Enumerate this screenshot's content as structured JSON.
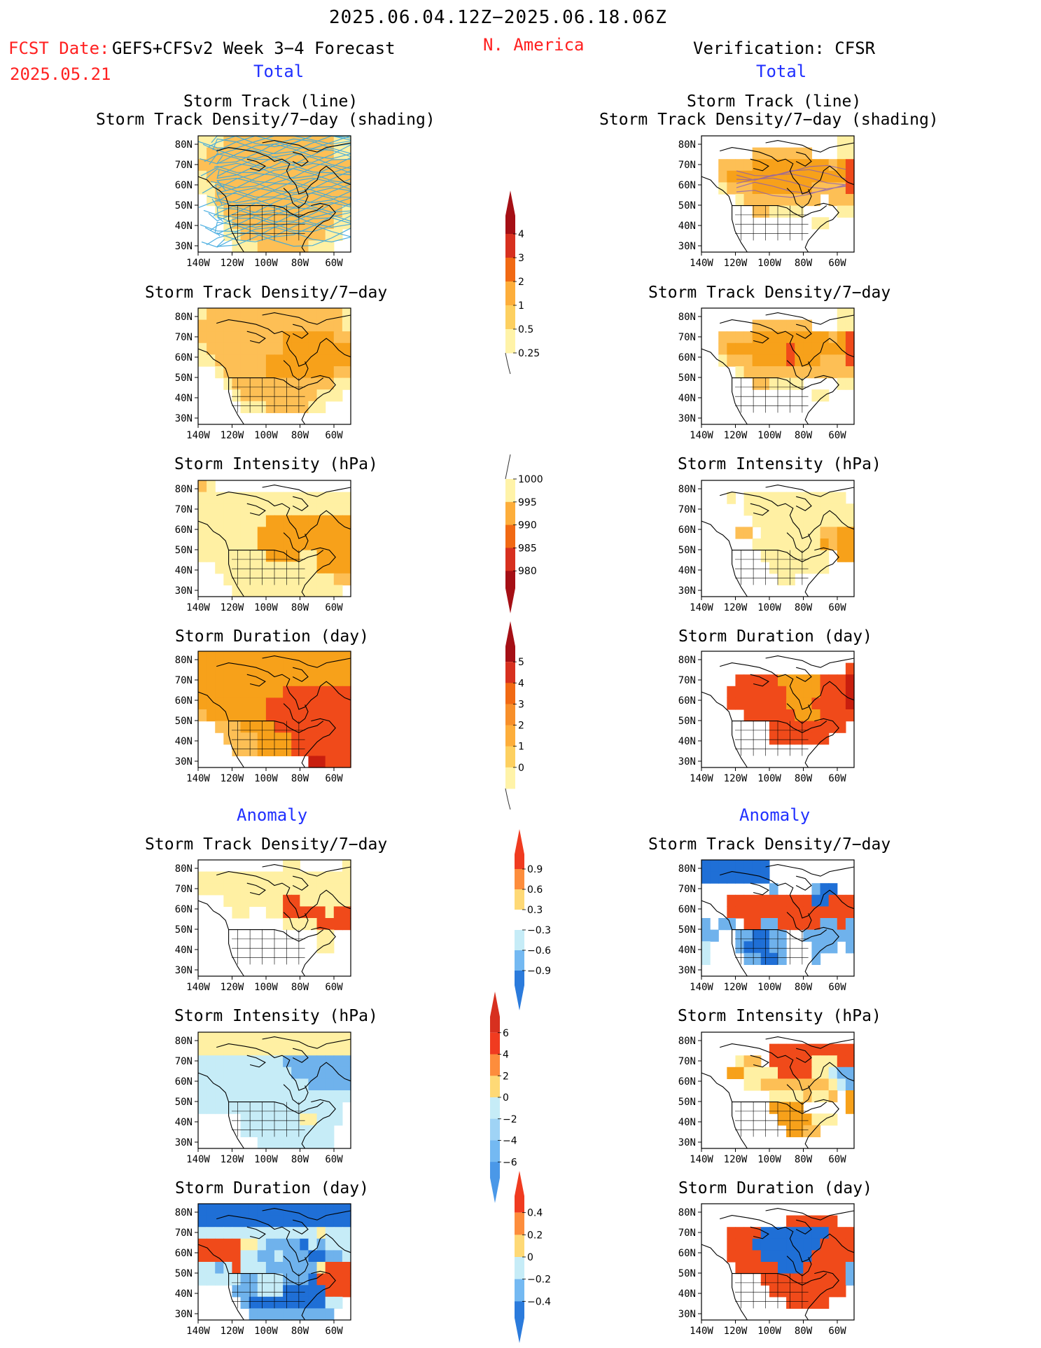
{
  "header": {
    "date_range": "2025.06.04.12Z−2025.06.18.06Z",
    "fcst_label": "FCST Date:",
    "fcst_date": "2025.05.21",
    "model": "GEFS+CFSv2 Week 3−4 Forecast",
    "region": "N. America",
    "verification": "Verification: CFSR",
    "total_left": "Total",
    "total_right": "Total",
    "anomaly_left": "Anomaly",
    "anomaly_right": "Anomaly"
  },
  "panel_titles": {
    "track_line": "Storm Track (line)",
    "track_shading": "Storm Track Density/7−day (shading)",
    "density": "Storm Track Density/7−day",
    "intensity": "Storm Intensity (hPa)",
    "duration": "Storm Duration (day)"
  },
  "axes": {
    "lat_ticks": [
      "80N",
      "70N",
      "60N",
      "50N",
      "40N",
      "30N"
    ],
    "lon_ticks": [
      "140W",
      "120W",
      "100W",
      "80W",
      "60W"
    ]
  },
  "colorbars": {
    "density_total": {
      "labels": [
        "4",
        "3",
        "2",
        "1",
        "0.5",
        "0.25"
      ],
      "colors": [
        "#a50f15",
        "#d7301f",
        "#f16913",
        "#fdae3b",
        "#fdd060",
        "#fff3a8"
      ]
    },
    "intensity_total": {
      "labels": [
        "1000",
        "995",
        "990",
        "985",
        "980"
      ],
      "colors": [
        "#fff3a8",
        "#fdae3b",
        "#f16913",
        "#d7301f",
        "#a50f15"
      ]
    },
    "duration_total": {
      "labels": [
        "5",
        "4",
        "3",
        "2",
        "1",
        "0"
      ],
      "colors": [
        "#a50f15",
        "#d7301f",
        "#f16913",
        "#f78f2a",
        "#fdae3b",
        "#fdd060",
        "#fff3a8"
      ]
    },
    "density_anom": {
      "labels": [
        "0.9",
        "0.6",
        "0.3",
        "−0.3",
        "−0.6",
        "−0.9"
      ],
      "colors": [
        "#f03b20",
        "#fd8d3c",
        "#fed976",
        "#ffffff",
        "#c6ecf7",
        "#74b9f2",
        "#2b7bdc"
      ]
    },
    "intensity_anom": {
      "labels": [
        "6",
        "4",
        "2",
        "0",
        "−2",
        "−4",
        "−6"
      ],
      "colors": [
        "#d7301f",
        "#f03b20",
        "#fd8d3c",
        "#fed976",
        "#c6ecf7",
        "#9fd3f5",
        "#74b9f2",
        "#4a98e8"
      ]
    },
    "duration_anom": {
      "labels": [
        "0.4",
        "0.2",
        "0",
        "−0.2",
        "−0.4"
      ],
      "colors": [
        "#f03b20",
        "#fd8d3c",
        "#fed976",
        "#c6ecf7",
        "#74b9f2",
        "#2b7bdc"
      ]
    }
  },
  "colors": {
    "title_red": "#ff2020",
    "title_blue": "#2030ff",
    "track_line": "#3aa7de"
  },
  "field_pattern_legend": {
    "O": "#f7a11a",
    "o": "#fdbf55",
    "y": "#fff0a3",
    "R": "#f04a1a",
    "D": "#c81e0e",
    "B": "#1f6fd6",
    "b": "#6fb2ec",
    "c": "#c6ecf7",
    ".": "none"
  },
  "fields": {
    "track_fc": [
      "yyyoooooooooooooyy",
      "yoooooooooooooooyy",
      "oooooooooooooooooo",
      "yooooooooooooooooo",
      "yyoooooooooooooooo",
      ".yoooooooooooooooo",
      "..yooooooooooooooy",
      "...yooooooooooooyy",
      "...yyooooooooooyy.",
      "....yyyooooooyyy.."
    ],
    "track_ob": [
      "................yy",
      "......ooooooo...yy",
      "..ooooOOOOOOOOOoOR",
      "..oOOOOOOOOOOOOOOR",
      "..yoooOOOOOOOooooR",
      "....yooooooooo.ooo",
      "......ooyyyy....yy",
      ".............yy...",
      "..................",
      ".................."
    ],
    "dens_fc": [
      "yooooooooooooooooy",
      "oooooooooooooooooy",
      "ooooooooooOOOOOOoo",
      "yoooooooooOOOOOOOO",
      "yyooooooOOOOOOOOOO",
      "..yoooooOOOOOOOOoo",
      "...yooooooooooooyy",
      "....yoooooooooyyy.",
      ".....yyyoooooyy...",
      ".................."
    ],
    "dens_ob": [
      "................yy",
      "......ooooooo...yy",
      "..ooooOOOOOOOOOoOR",
      "..oOOOOOOOROOOOOOR",
      "..yoooOOOOROOOoooR",
      "....yooooooooooooo",
      "......ooyyyy....yy",
      ".............yy...",
      "..................",
      ".................."
    ],
    "int_fc": [
      "oy................",
      "yyyyyyyyyyyyyyyyyy",
      "yyyyyyyyyyyyyyyyyy",
      "yyyyyyyyOOOOOOOOOO",
      "yyyyyyyOOOOOOOOOOO",
      "yyyyyyyOOOOOOOOOOO",
      "yyyyyyyyOOOOyyOOOO",
      "..yyyyyyyyyyyyOOOO",
      "...yyyyyyyyyyyyyoo",
      "....yyyyyyyyyyyyy."
    ],
    "int_fc_small": [],
    "int_ob": [
      "..................",
      "...y.yyyyyyyyyyyy.",
      ".....yyyyyyyyyyyyy",
      "......yyyyyyyyyyyy",
      "....oo.yyyyyyyooOO",
      "......yyyyyyyyOoOO",
      ".......yyyyyyyy.OO",
      "........yyyyyyy...",
      ".........yy.......",
      ".................."
    ],
    "dur_fc": [
      "OOOOOOOOOOOOOOOOOO",
      "OOOOOOOOOOOOOOOOOO",
      "OOOOOOOOOOOOOOOOOO",
      "OOOOOOOOOORRRRRRRR",
      "OOOOOOOORRRRRRRRRR",
      "oOOOOOOORRRRRRRRRR",
      "..oooOOOORRRRRRRRR",
      "...ooooOOOORRRRRRR",
      "....oooOOOORRRRRRR",
      ".............DDRRR"
    ],
    "dur_ob": [
      "..................",
      ".................R",
      "....RRRRROOOOORRRD",
      "...RRRRRRROOOORRRD",
      "...RRRRRRROOORRRRD",
      ".....RRRRRROOORRRR",
      "........RRRRRRRRR.",
      "........RRRRRRR...",
      "..................",
      ".................."
    ],
    "dens_anom_fc": [
      "..........yy.....y",
      "yyyyyyyyyyyyyyyyyy",
      "yyyyyyyyyyyyyyyyyy",
      "...yyyyyyyRRyyyyyy",
      "....yy..yyRRRRRyRR",
      "..........yyyyRRRR",
      "..............yy..",
      "..............yy..",
      "..................",
      ".................."
    ],
    "dens_anom_ob": [
      "BBBBBBBB..........",
      "BBBBBBBB..........",
      "........b....bBB..",
      "...RRRRRRRRRRBBRRR",
      "...RRRRRRRRRRRRRRR",
      "b.bb.RRbbRRRRRbbRb",
      "bb..bbBBbb..bbbbbb",
      "c...bBBBbb...bbb.b",
      "c....bbBBb...b....",
      ".................."
    ],
    "int_anom_fc": [
      "yyyyyyyyyyyyyyyyyy",
      "yyyyyyyyyyyyyyyyyy",
      "ccccccccccbbbbbbbb",
      "cccccccccccbbbbbbb",
      "cccccccccccccbbbbb",
      "cccccccccccccccccc",
      "ccccccccccccccccc.",
      ".....cccccccyyccc.",
      ".....ccccccccccc..",
      ".......ccccccccc.."
    ],
    "int_anom_ob": [
      "..................",
      "........RRRRRRRRRR",
      "....yoo.RRRRRyyyRR",
      "...OOyyyyRRRRyycbb",
      ".....yyooooooooycb",
      "........yyyyoyyo.O",
      "........OOOO.....O",
      ".........OOOOyyy..",
      "..........OOoo....",
      ".................."
    ],
    "dur_anom_fc": [
      "BBBBBBBBBBBBBBBBBB",
      "BBBBBBBBBBBBBBBBBB",
      "ccccccccccccccyccc",
      "RRRRRyycbbbbBcbccc",
      "RRRRRccbbcbbbBBbbc",
      "ccbcRcccbbbbbbyRRR",
      "cccccbbcccbbbBRRRR",
      "....bbbcccBBBBBRRR",
      ".....bBBBBBBBBBcc.",
      "......bbbbbbbbbb.."
    ],
    "dur_anom_ob": [
      "..................",
      "..........RRRRRR..",
      "...RRRRBBBBBBBBRRR",
      "...RRRBBBBBBBBRRRR",
      "...RRRRBBBBBBRRRRR",
      "....RRRRRBBBRRRRRb",
      ".......RRRRRRRRRRb",
      "........RRRRRRRRR.",
      "..........RRRRR...",
      ".................."
    ]
  }
}
